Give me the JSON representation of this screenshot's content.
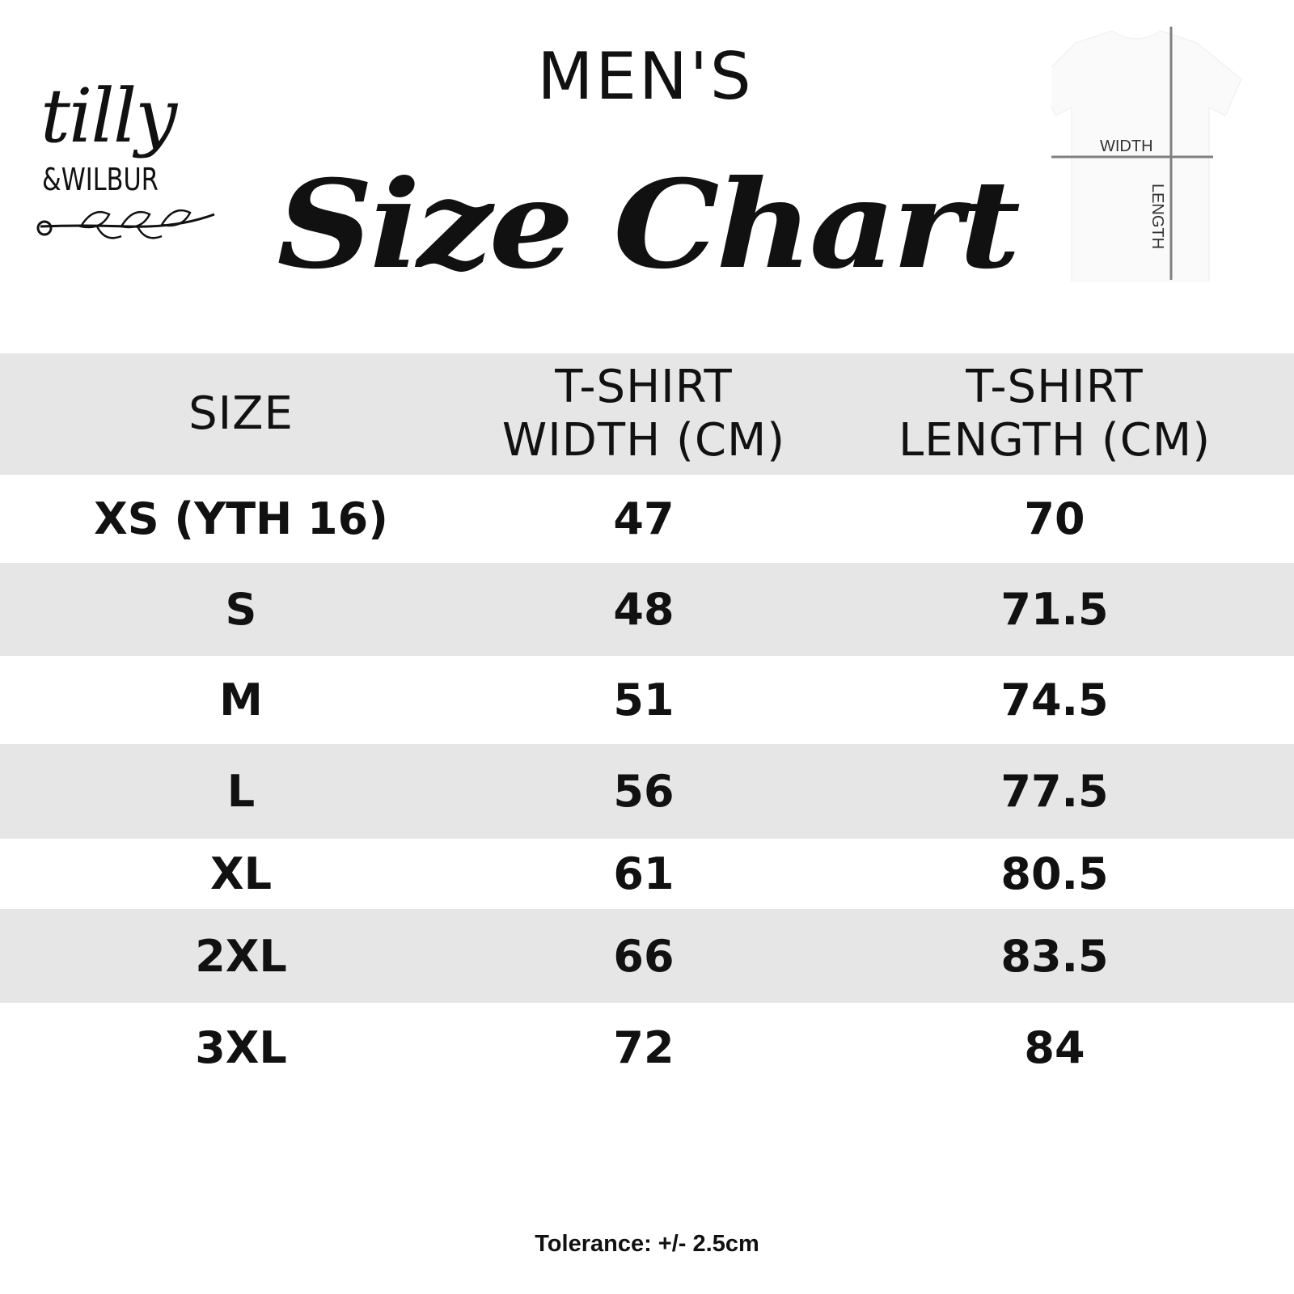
{
  "logo": {
    "line1": "tilly",
    "line2": "&WILBUR"
  },
  "heading": "MEN'S",
  "title": "Size Chart",
  "diagram": {
    "width_label": "WIDTH",
    "length_label": "LENGTH"
  },
  "table": {
    "headers": [
      "SIZE",
      "T-SHIRT WIDTH (CM)",
      "T-SHIRT LENGTH (CM)"
    ],
    "rows": [
      [
        "XS (YTH 16)",
        "47",
        "70"
      ],
      [
        "S",
        "48",
        "71.5"
      ],
      [
        "M",
        "51",
        "74.5"
      ],
      [
        "L",
        "56",
        "77.5"
      ],
      [
        "XL",
        "61",
        "80.5"
      ],
      [
        "2XL",
        "66",
        "83.5"
      ],
      [
        "3XL",
        "72",
        "84"
      ]
    ]
  },
  "footer": "Tolerance: +/- 2.5cm",
  "colors": {
    "band": "#e6e6e6",
    "text": "#111111",
    "diagram_line": "#808080"
  }
}
